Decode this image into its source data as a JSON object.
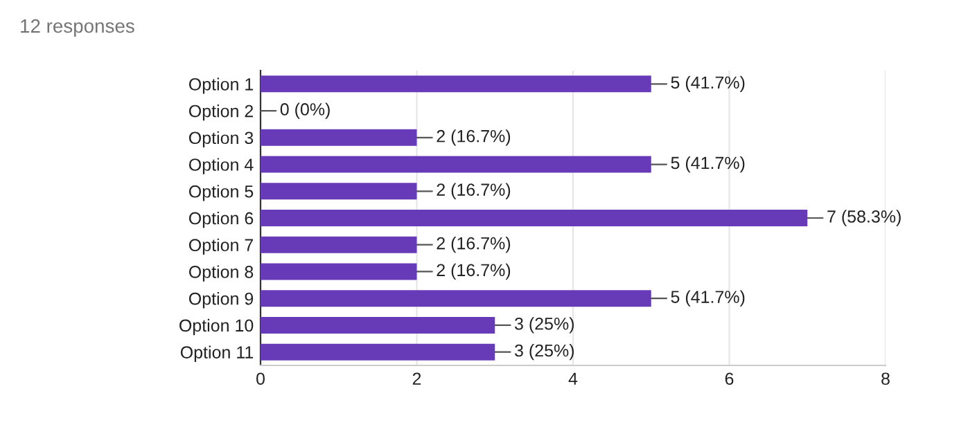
{
  "chart_data": {
    "type": "bar",
    "orientation": "horizontal",
    "title": "12 responses",
    "categories": [
      "Option 1",
      "Option 2",
      "Option 3",
      "Option 4",
      "Option 5",
      "Option 6",
      "Option 7",
      "Option 8",
      "Option 9",
      "Option 10",
      "Option 11"
    ],
    "values": [
      5,
      0,
      2,
      5,
      2,
      7,
      2,
      2,
      5,
      3,
      3
    ],
    "value_labels": [
      "5 (41.7%)",
      "0 (0%)",
      "2 (16.7%)",
      "5 (41.7%)",
      "2 (16.7%)",
      "7 (58.3%)",
      "2 (16.7%)",
      "2 (16.7%)",
      "5 (41.7%)",
      "3 (25%)",
      "3 (25%)"
    ],
    "color": "#673ab7",
    "xlim": [
      0,
      8
    ],
    "xticks": [
      0,
      2,
      4,
      6,
      8
    ],
    "grid": "x",
    "legend": false
  }
}
